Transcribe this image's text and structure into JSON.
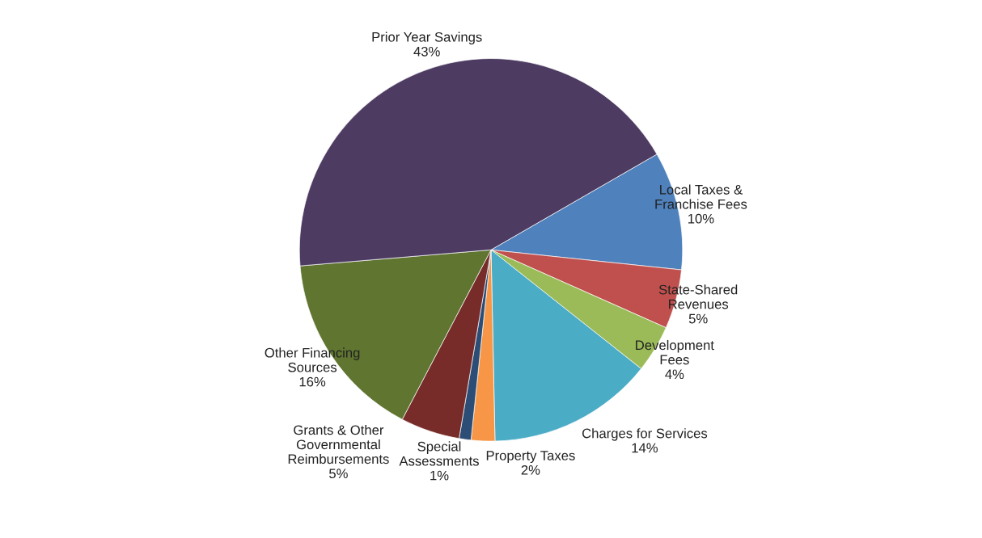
{
  "chart_data": {
    "type": "pie",
    "categories": [
      "Local Taxes &\nFranchise Fees",
      "State-Shared\nRevenues",
      "Development\nFees",
      "Charges for Services",
      "Property Taxes",
      "Special\nAssessments",
      "Grants & Other\nGovernmental\nReimbursements",
      "Other Financing\nSources",
      "Prior Year Savings"
    ],
    "values": [
      10,
      5,
      4,
      14,
      2,
      1,
      5,
      16,
      43
    ],
    "value_labels": [
      "10%",
      "5%",
      "4%",
      "14%",
      "2%",
      "1%",
      "5%",
      "16%",
      "43%"
    ],
    "colors": [
      "#4f81bd",
      "#c0504d",
      "#9bbb59",
      "#4bacc6",
      "#f79646",
      "#2c4d75",
      "#772c2a",
      "#5f7530",
      "#4d3b62"
    ],
    "legend": false
  }
}
